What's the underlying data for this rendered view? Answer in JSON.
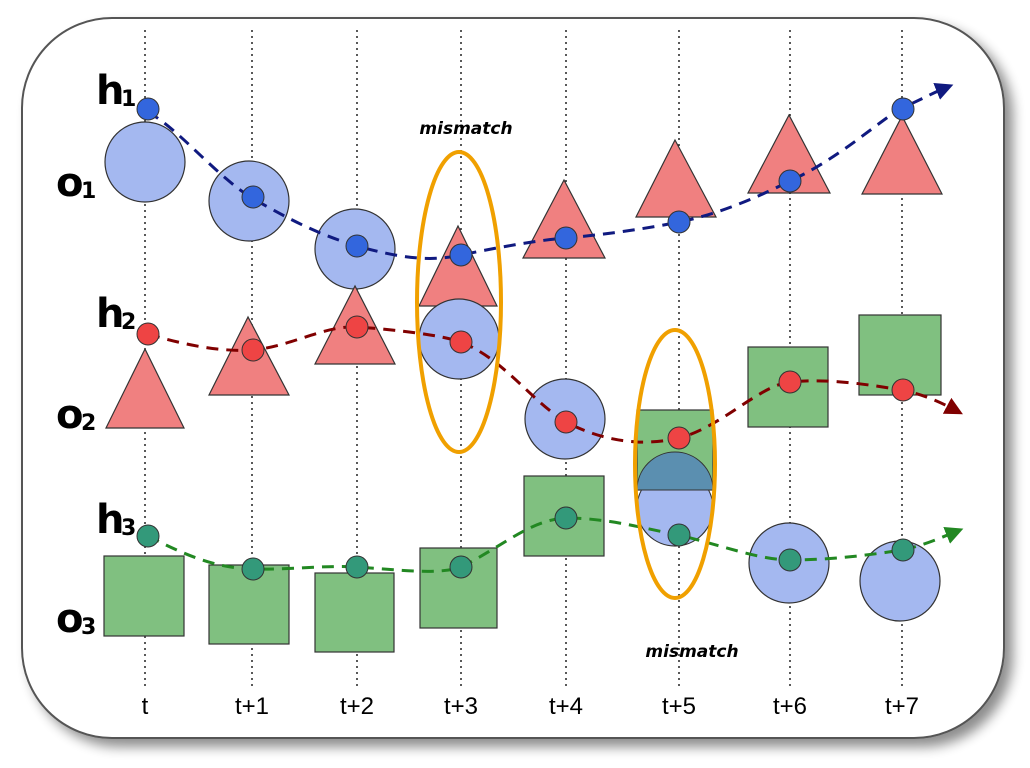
{
  "time_labels": [
    "t",
    "t+1",
    "t+2",
    "t+3",
    "t+4",
    "t+5",
    "t+6",
    "t+7"
  ],
  "row_labels": [
    {
      "h": "h",
      "h_sub": "1",
      "o": "o",
      "o_sub": "1"
    },
    {
      "h": "h",
      "h_sub": "2",
      "o": "o",
      "o_sub": "2"
    },
    {
      "h": "h",
      "h_sub": "3",
      "o": "o",
      "o_sub": "3"
    }
  ],
  "annotations": {
    "mismatch_top": "mismatch",
    "mismatch_bottom": "mismatch"
  },
  "colors": {
    "circle_fill": "#a4b8f0",
    "triangle_fill": "#f08080",
    "square_fill": "#80c080",
    "h1_dot": "#3366dd",
    "h2_dot": "#ee4444",
    "h3_dot": "#33997a",
    "h1_line": "#101a80",
    "h2_line": "#800000",
    "h3_line": "#228822",
    "mismatch_ellipse": "#f0a000"
  }
}
